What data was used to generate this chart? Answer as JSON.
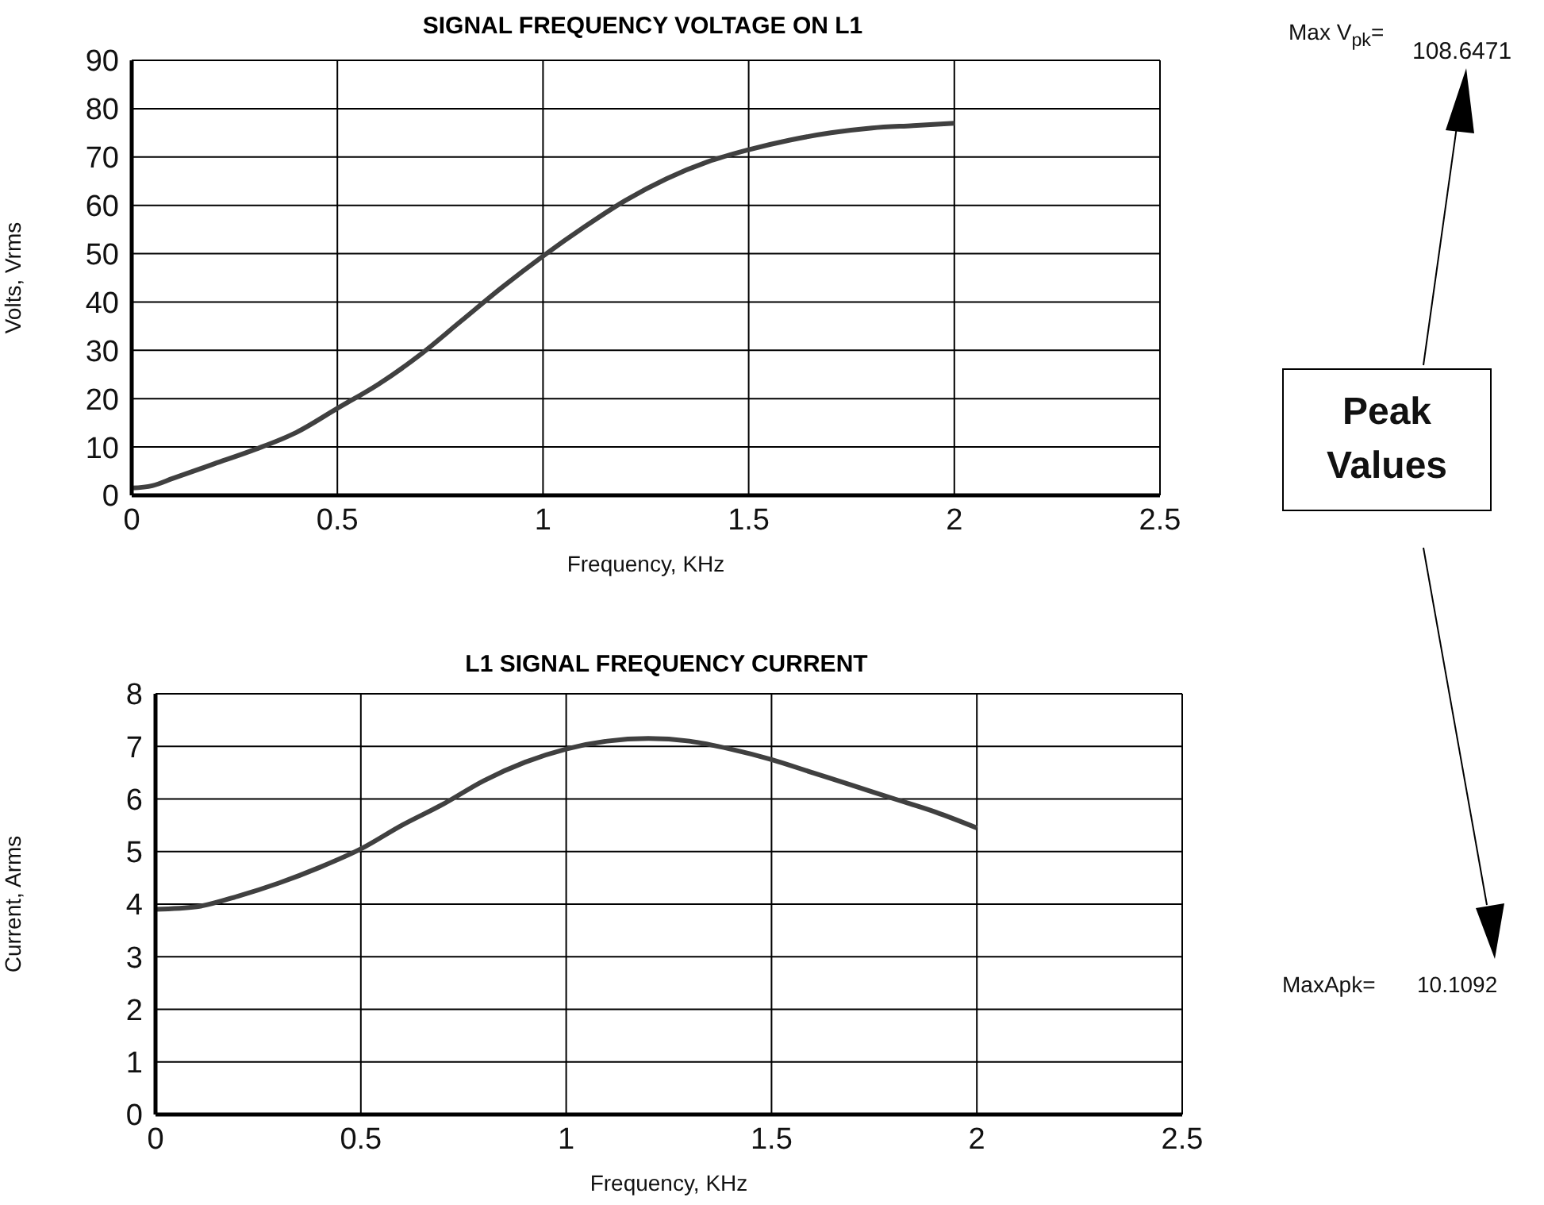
{
  "chart_data": [
    {
      "type": "line",
      "title": "SIGNAL FREQUENCY VOLTAGE ON L1",
      "xlabel": "Frequency, KHz",
      "ylabel": "Volts, Vrms",
      "x": [
        0,
        0.05,
        0.1,
        0.2,
        0.3,
        0.4,
        0.5,
        0.6,
        0.7,
        0.8,
        0.9,
        1.0,
        1.1,
        1.2,
        1.3,
        1.4,
        1.5,
        1.6,
        1.7,
        1.8,
        1.9,
        2.0
      ],
      "series": [
        {
          "color": "#404040",
          "values": [
            1.5,
            2,
            3.5,
            6.5,
            9.5,
            13,
            18,
            23,
            29,
            36,
            43,
            49.5,
            55.5,
            61,
            65.5,
            69,
            71.5,
            73.5,
            75,
            76,
            76.5,
            77
          ]
        }
      ],
      "xlim": [
        0,
        2.5
      ],
      "xticks": [
        0,
        0.5,
        1,
        1.5,
        2,
        2.5
      ],
      "ylim": [
        0,
        90
      ],
      "yticks": [
        0,
        10,
        20,
        30,
        40,
        50,
        60,
        70,
        80,
        90
      ],
      "grid": true,
      "legend": false,
      "annotations": [
        "Max V$_{pk}$=",
        "108.6471",
        "Peak Values"
      ]
    },
    {
      "type": "line",
      "title": "L1 SIGNAL FREQUENCY CURRENT",
      "xlabel": "Frequency, KHz",
      "ylabel": "Current, Arms",
      "x": [
        0,
        0.1,
        0.2,
        0.3,
        0.4,
        0.5,
        0.6,
        0.7,
        0.8,
        0.9,
        1.0,
        1.1,
        1.2,
        1.3,
        1.4,
        1.5,
        1.6,
        1.7,
        1.8,
        1.9,
        2.0
      ],
      "series": [
        {
          "color": "#404040",
          "values": [
            3.9,
            3.95,
            4.15,
            4.4,
            4.7,
            5.05,
            5.5,
            5.9,
            6.35,
            6.7,
            6.95,
            7.1,
            7.15,
            7.1,
            6.95,
            6.75,
            6.5,
            6.25,
            6.0,
            5.75,
            5.45
          ]
        }
      ],
      "xlim": [
        0,
        2.5
      ],
      "xticks": [
        0,
        0.5,
        1,
        1.5,
        2,
        2.5
      ],
      "ylim": [
        0,
        8
      ],
      "yticks": [
        0,
        1,
        2,
        3,
        4,
        5,
        6,
        7,
        8
      ],
      "grid": true,
      "legend": false,
      "annotations": [
        "MaxApk=",
        "10.1092"
      ]
    }
  ]
}
